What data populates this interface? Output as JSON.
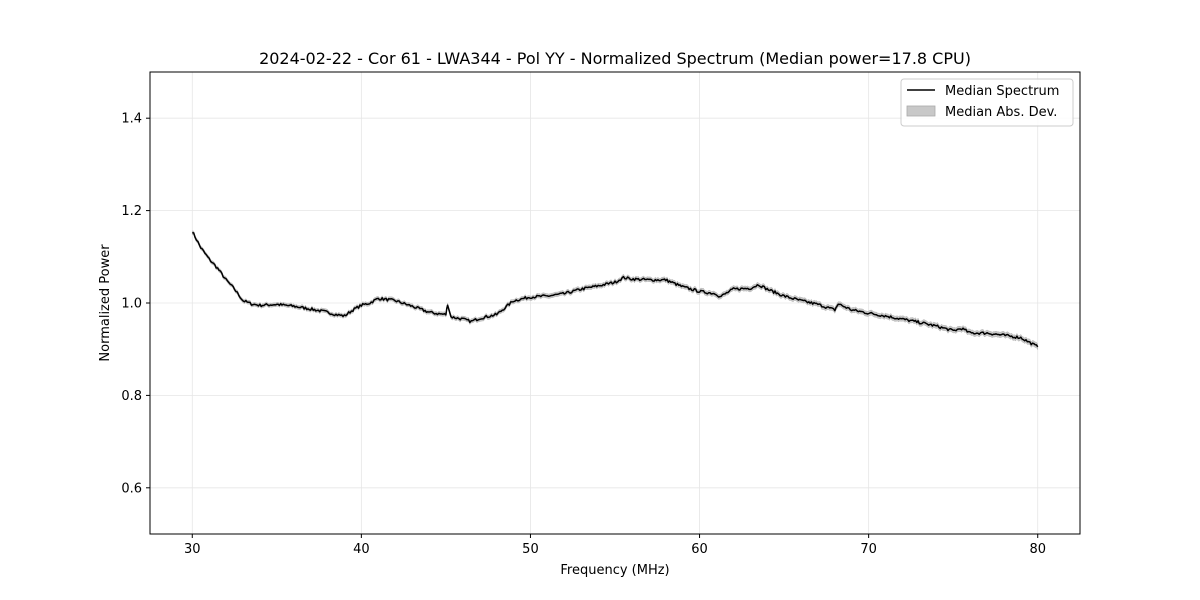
{
  "chart_data": {
    "type": "line",
    "title": "2024-02-22 - Cor 61 - LWA344 - Pol YY - Normalized Spectrum (Median power=17.8 CPU)",
    "xlabel": "Frequency (MHz)",
    "ylabel": "Normalized Power",
    "xlim": [
      27.5,
      82.5
    ],
    "ylim": [
      0.5,
      1.5
    ],
    "xticks": [
      30,
      40,
      50,
      60,
      70,
      80
    ],
    "xtick_labels": [
      "30",
      "40",
      "50",
      "60",
      "70",
      "80"
    ],
    "yticks": [
      0.6,
      0.8,
      1.0,
      1.2,
      1.4
    ],
    "ytick_labels": [
      "0.6",
      "0.8",
      "1.0",
      "1.2",
      "1.4"
    ],
    "grid": true,
    "legend": {
      "location": "top-right",
      "entries": [
        {
          "label": "Median Spectrum",
          "kind": "line",
          "color": "#000000"
        },
        {
          "label": "Median Abs. Dev.",
          "kind": "band",
          "color": "#c8c8c8"
        }
      ]
    },
    "series": [
      {
        "name": "Median Spectrum",
        "color": "#000000",
        "x": [
          30,
          30.5,
          31,
          31.5,
          32,
          32.5,
          33,
          33.5,
          34,
          35,
          36,
          37,
          38,
          38.5,
          39,
          39.5,
          40,
          40.5,
          41,
          42,
          43,
          44,
          44.5,
          45,
          45.1,
          45.3,
          46,
          46.5,
          47,
          48,
          48.5,
          49,
          50,
          51,
          52,
          53,
          54,
          55,
          55.5,
          56,
          57,
          58,
          59,
          60,
          61,
          61.2,
          62,
          63,
          63.5,
          64,
          65,
          66,
          67,
          68,
          68.2,
          69,
          70,
          71,
          72,
          73,
          74,
          75,
          75.5,
          76,
          77,
          78,
          79,
          80
        ],
        "y": [
          1.155,
          1.12,
          1.095,
          1.075,
          1.05,
          1.03,
          1.005,
          0.998,
          0.995,
          0.997,
          0.993,
          0.987,
          0.98,
          0.975,
          0.972,
          0.985,
          0.995,
          1.0,
          1.01,
          1.005,
          0.993,
          0.98,
          0.977,
          0.975,
          0.998,
          0.97,
          0.965,
          0.96,
          0.967,
          0.975,
          0.99,
          1.005,
          1.013,
          1.015,
          1.02,
          1.03,
          1.037,
          1.045,
          1.055,
          1.052,
          1.05,
          1.05,
          1.035,
          1.025,
          1.02,
          1.013,
          1.03,
          1.032,
          1.04,
          1.03,
          1.015,
          1.005,
          0.997,
          0.985,
          0.998,
          0.985,
          0.978,
          0.972,
          0.965,
          0.958,
          0.95,
          0.94,
          0.945,
          0.935,
          0.935,
          0.93,
          0.925,
          0.905
        ]
      }
    ],
    "band": {
      "name": "Median Abs. Dev.",
      "half_width": [
        0.004,
        0.006
      ]
    }
  }
}
